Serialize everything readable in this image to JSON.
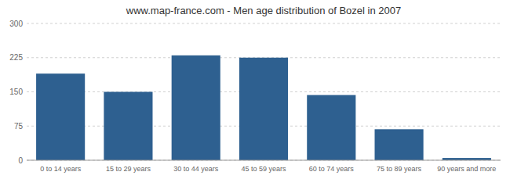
{
  "chart_data": {
    "type": "bar",
    "title": "www.map-france.com - Men age distribution of Bozel in 2007",
    "categories": [
      "0 to 14 years",
      "15 to 29 years",
      "30 to 44 years",
      "45 to 59 years",
      "60 to 74 years",
      "75 to 89 years",
      "90 years and more"
    ],
    "values": [
      190,
      150,
      230,
      225,
      143,
      68,
      5
    ],
    "color": "#2e6090",
    "ylim": [
      0,
      300
    ],
    "yticks": [
      0,
      75,
      150,
      225,
      300
    ],
    "grid": true
  }
}
